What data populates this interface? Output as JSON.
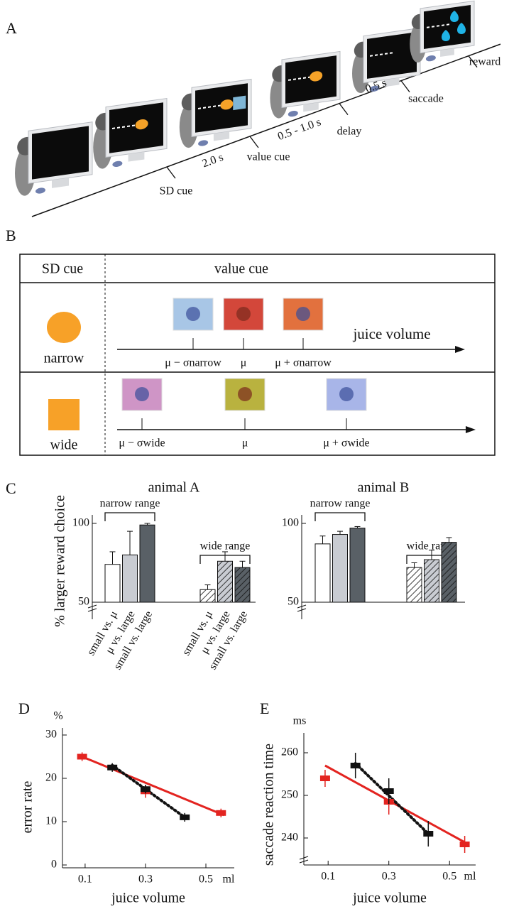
{
  "panel_a": {
    "label": "A",
    "events": [
      "SD cue",
      "value cue",
      "delay",
      "saccade",
      "reward"
    ],
    "durations": [
      "2.0 s",
      "0.5 - 1.0 s",
      "0.5 s"
    ]
  },
  "panel_b": {
    "label": "B",
    "header": [
      "SD cue",
      "value cue"
    ],
    "axis_label": "juice volume",
    "rows": [
      {
        "name": "narrow",
        "ticks": [
          "μ − σnarrow",
          "μ",
          "μ + σnarrow"
        ]
      },
      {
        "name": "wide",
        "ticks": [
          "μ − σwide",
          "μ",
          "μ + σwide"
        ]
      }
    ]
  },
  "panel_c_label": "C",
  "chart_data": [
    {
      "type": "bar",
      "title": "animal A",
      "ylabel": "% larger reward choice",
      "ylim": [
        50,
        100
      ],
      "yticks": [
        50,
        100
      ],
      "categories": [
        "small vs. μ",
        "μ vs. large",
        "small vs. large"
      ],
      "colors": [
        "#ffffff",
        "#c9ccd2",
        "#596066"
      ],
      "groups": [
        {
          "name": "narrow range",
          "hatch": false,
          "values": [
            74,
            80,
            99
          ],
          "errors": [
            8,
            15,
            1
          ]
        },
        {
          "name": "wide range",
          "hatch": true,
          "values": [
            58,
            76,
            72
          ],
          "errors": [
            3,
            6,
            4
          ]
        }
      ]
    },
    {
      "type": "bar",
      "title": "animal B",
      "ylim": [
        50,
        100
      ],
      "yticks": [
        50,
        100
      ],
      "colors": [
        "#ffffff",
        "#c9ccd2",
        "#596066"
      ],
      "groups": [
        {
          "name": "narrow range",
          "hatch": false,
          "values": [
            87,
            93,
            97
          ],
          "errors": [
            5,
            2,
            1
          ]
        },
        {
          "name": "wide range",
          "hatch": true,
          "values": [
            72,
            77,
            88
          ],
          "errors": [
            3,
            6,
            3
          ]
        }
      ]
    },
    {
      "type": "scatter",
      "panel": "D",
      "yunit": "%",
      "ylabel": "error rate",
      "xlabel": "juice volume",
      "xunit": "ml",
      "xlim": [
        0.025,
        0.594
      ],
      "xticks": [
        0.1,
        0.3,
        0.5
      ],
      "ylim": [
        0,
        30
      ],
      "yticks": [
        0,
        10,
        20,
        30
      ],
      "series": [
        {
          "color": "#e32420",
          "dashed": false,
          "x": [
            0.09,
            0.3,
            0.55
          ],
          "values": [
            25,
            17,
            12
          ],
          "errors": [
            1,
            1.5,
            1
          ],
          "fit_x": [
            0.09,
            0.56
          ],
          "fit_values": [
            25,
            11.5
          ]
        },
        {
          "color": "#111111",
          "dashed": true,
          "x": [
            0.19,
            0.3,
            0.43
          ],
          "values": [
            22.5,
            17.5,
            11
          ],
          "errors": [
            1,
            1,
            1
          ],
          "fit_x": [
            0.19,
            0.43
          ],
          "fit_values": [
            23,
            11
          ]
        }
      ]
    },
    {
      "type": "scatter",
      "panel": "E",
      "yunit": "ms",
      "ylabel": "saccade reaction time",
      "xlabel": "juice volume",
      "xunit": "ml",
      "xlim": [
        0.02,
        0.586
      ],
      "xticks": [
        0.1,
        0.3,
        0.5
      ],
      "ylim": [
        236,
        263
      ],
      "yticks": [
        240,
        250,
        260
      ],
      "series": [
        {
          "color": "#e32420",
          "dashed": false,
          "x": [
            0.09,
            0.3,
            0.55
          ],
          "values": [
            254,
            248.5,
            238.5
          ],
          "errors": [
            2,
            3,
            2
          ],
          "fit_x": [
            0.09,
            0.55
          ],
          "fit_values": [
            257,
            239
          ]
        },
        {
          "color": "#111111",
          "dashed": true,
          "x": [
            0.19,
            0.3,
            0.43
          ],
          "values": [
            257,
            251,
            241
          ],
          "errors": [
            3,
            3,
            3
          ],
          "fit_x": [
            0.19,
            0.43
          ],
          "fit_values": [
            257.5,
            241
          ]
        }
      ]
    }
  ]
}
